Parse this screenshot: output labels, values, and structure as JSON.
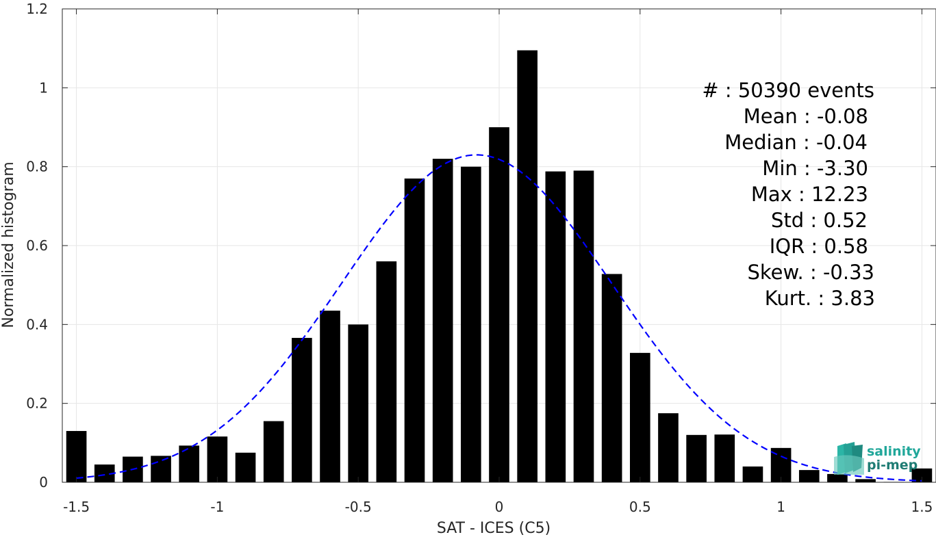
{
  "chart_data": {
    "type": "bar",
    "xlabel": "SAT - ICES (C5)",
    "ylabel": "Normalized histogram",
    "xlim": [
      -1.55,
      1.55
    ],
    "ylim": [
      0,
      1.2
    ],
    "xticks": [
      "-1.5",
      "-1",
      "-0.5",
      "0",
      "0.5",
      "1",
      "1.5"
    ],
    "yticks": [
      "0",
      "0.2",
      "0.4",
      "0.6",
      "0.8",
      "1",
      "1.2"
    ],
    "grid": true,
    "bin_width": 0.1,
    "x": [
      -1.5,
      -1.4,
      -1.3,
      -1.2,
      -1.1,
      -1.0,
      -0.9,
      -0.8,
      -0.7,
      -0.6,
      -0.5,
      -0.4,
      -0.3,
      -0.2,
      -0.1,
      0.0,
      0.1,
      0.2,
      0.3,
      0.4,
      0.5,
      0.6,
      0.7,
      0.8,
      0.9,
      1.0,
      1.1,
      1.2,
      1.3,
      1.4,
      1.5
    ],
    "values": [
      0.13,
      0.045,
      0.065,
      0.067,
      0.093,
      0.116,
      0.075,
      0.155,
      0.366,
      0.435,
      0.4,
      0.56,
      0.77,
      0.82,
      0.8,
      0.9,
      1.095,
      0.788,
      0.79,
      0.528,
      0.328,
      0.175,
      0.12,
      0.121,
      0.04,
      0.087,
      0.031,
      0.021,
      0.008,
      0.001,
      0.035
    ],
    "fit_curve": {
      "style": "dashed",
      "color": "#0000ff",
      "distribution": "gaussian",
      "mean": -0.08,
      "std": 0.48,
      "peak": 0.83
    },
    "bar_color": "#000000",
    "stats": [
      "#  : 50390 events",
      "Mean : -0.08",
      "Median : -0.04",
      "Min : -3.30",
      "Max : 12.23",
      "Std : 0.52",
      "IQR : 0.58",
      "Skew. : -0.33",
      "Kurt. : 3.83"
    ]
  },
  "logo": {
    "line1": "salinity",
    "line2": "pi-mep",
    "color1": "#21a79a",
    "color2": "#1f7c74"
  }
}
